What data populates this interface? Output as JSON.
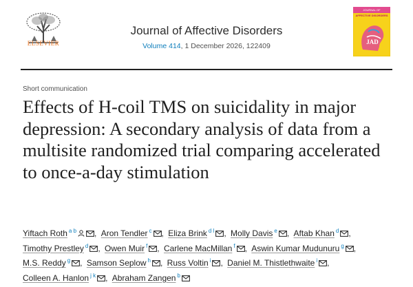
{
  "header": {
    "publisher": "ELSEVIER",
    "journal_title": "Journal of Affective Disorders",
    "volume_link": "Volume 414",
    "issue_info": ", 1 December 2026, 122409",
    "cover": {
      "top_text": "JOURNAL OF",
      "title_text": "AFFECTIVE DISORDERS",
      "badge": "JAD",
      "colors": {
        "background": "#f7d21b",
        "head": "#e24b8f",
        "accent": "#3aa0d8"
      }
    }
  },
  "article": {
    "type": "Short communication",
    "title": "Effects of H-coil TMS on suicidality in major depression: A secondary analysis of data from a multisite randomized trial comparing accelerated to once-a-day stimulation"
  },
  "authors": {
    "lines": [
      [
        {
          "name": "Yiftach Roth",
          "aff": "a b",
          "icons": [
            "person-icon",
            "email-icon"
          ]
        },
        {
          "name": "Aron Tendler",
          "aff": "c",
          "icons": [
            "email-icon"
          ]
        },
        {
          "name": "Eliza Brink",
          "aff": "d l",
          "icons": [
            "email-icon"
          ]
        },
        {
          "name": "Molly Davis",
          "aff": "e",
          "icons": [
            "email-icon"
          ]
        },
        {
          "name": "Aftab Khan",
          "aff": "d",
          "icons": [
            "email-icon"
          ]
        }
      ],
      [
        {
          "name": "Timothy Prestley",
          "aff": "d",
          "icons": [
            "email-icon"
          ]
        },
        {
          "name": "Owen Muir",
          "aff": "f",
          "icons": [
            "email-icon"
          ]
        },
        {
          "name": "Carlene MacMillan",
          "aff": "f",
          "icons": [
            "email-icon"
          ]
        },
        {
          "name": "Aswin Kumar Mudunuru",
          "aff": "g",
          "icons": [
            "email-icon"
          ]
        }
      ],
      [
        {
          "name": "M.S. Reddy",
          "aff": "g",
          "icons": [
            "email-icon"
          ]
        },
        {
          "name": "Samson Seplow",
          "aff": "h",
          "icons": [
            "email-icon"
          ]
        },
        {
          "name": "Russ Voltin",
          "aff": "i",
          "icons": [
            "email-icon"
          ]
        },
        {
          "name": "Daniel M. Thistlethwaite",
          "aff": "i",
          "icons": [
            "email-icon"
          ]
        }
      ],
      [
        {
          "name": "Colleen A. Hanlon",
          "aff": "j k",
          "icons": [
            "email-icon"
          ]
        },
        {
          "name": "Abraham Zangen",
          "aff": "b",
          "icons": [
            "email-icon"
          ]
        }
      ]
    ],
    "separator": ","
  },
  "colors": {
    "link": "#0c7dbb",
    "publisher": "#e9711c",
    "text": "#1f1f1f"
  }
}
